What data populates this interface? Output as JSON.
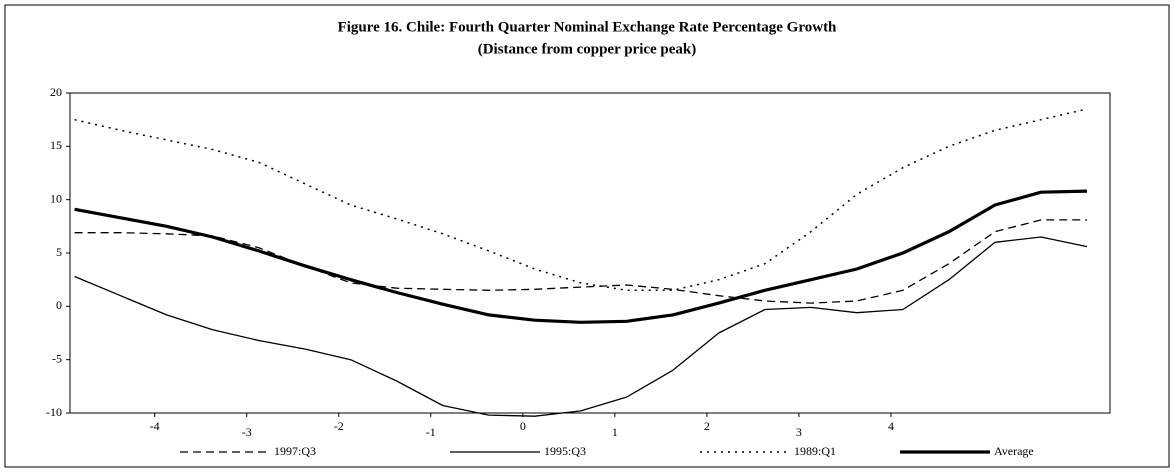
{
  "chart_data": {
    "type": "line",
    "title": "Figure 16. Chile: Fourth Quarter Nominal Exchange Rate Percentage Growth",
    "subtitle": "(Distance from copper price peak)",
    "x": [
      -4.87,
      -4.37,
      -3.87,
      -3.37,
      -2.87,
      -2.37,
      -1.87,
      -1.37,
      -0.87,
      -0.37,
      0.13,
      0.63,
      1.13,
      1.63,
      2.13,
      2.63,
      3.13,
      3.63,
      4.13,
      4.63,
      5.13,
      5.63,
      6.13
    ],
    "xlim": [
      -4.92,
      6.38
    ],
    "xticks": [
      -4,
      -3,
      -2,
      -1,
      0,
      1,
      2,
      3,
      4
    ],
    "ylim": [
      -10,
      20
    ],
    "yticks": [
      -10,
      -5,
      0,
      5,
      10,
      15,
      20
    ],
    "legend": "bottom",
    "series": [
      {
        "name": "1997:Q3",
        "color": "#000",
        "style": "dashed",
        "values": [
          6.9,
          6.9,
          6.8,
          6.6,
          5.5,
          3.8,
          2.2,
          1.7,
          1.6,
          1.5,
          1.6,
          1.8,
          2,
          1.6,
          1,
          0.5,
          0.3,
          0.5,
          1.5,
          4,
          7,
          8.1,
          8.1
        ]
      },
      {
        "name": "1995:Q3",
        "color": "#000",
        "style": "solid",
        "values": [
          2.8,
          1,
          -0.8,
          -2.2,
          -3.2,
          -4,
          -5,
          -7,
          -9.3,
          -10.2,
          -10.3,
          -9.8,
          -8.5,
          -6,
          -2.5,
          -0.3,
          -0.1,
          -0.6,
          -0.3,
          2.5,
          6,
          6.5,
          5.6
        ]
      },
      {
        "name": "1989:Q1",
        "color": "#000",
        "style": "dotted",
        "values": [
          17.5,
          16.5,
          15.6,
          14.7,
          13.5,
          11.5,
          9.5,
          8.2,
          6.8,
          5.2,
          3.5,
          2.2,
          1.5,
          1.5,
          2.5,
          4,
          7,
          10.5,
          13,
          15,
          16.5,
          17.5,
          18.5
        ]
      },
      {
        "name": "Average",
        "color": "#000",
        "style": "thick",
        "values": [
          9.1,
          8.3,
          7.5,
          6.5,
          5.2,
          3.8,
          2.5,
          1.3,
          0.2,
          -0.8,
          -1.3,
          -1.5,
          -1.4,
          -0.8,
          0.3,
          1.5,
          2.5,
          3.5,
          5,
          7,
          9.5,
          10.7,
          10.8
        ]
      }
    ]
  }
}
